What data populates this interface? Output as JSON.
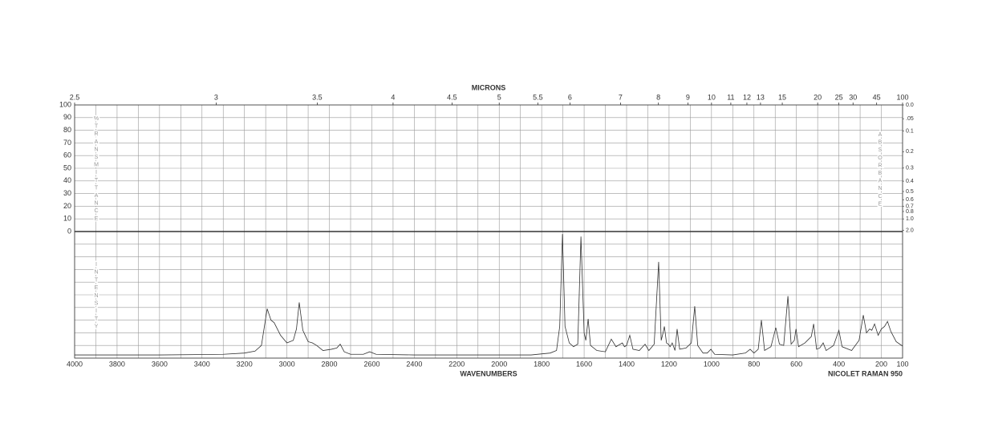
{
  "chart_data": {
    "type": "line",
    "x2_label": "MICRONS",
    "x_label": "WAVENUMBERS",
    "annotation": "NICOLET RAMAN 950",
    "y_label": "%TRANSMITTANCE",
    "y2_label": "ABSORBANCE",
    "y3_label": "INTENSITY",
    "xlim": [
      4000,
      100
    ],
    "xticks": [
      4000,
      3800,
      3600,
      3400,
      3200,
      3000,
      2800,
      2600,
      2400,
      2200,
      2000,
      1800,
      1600,
      1400,
      1200,
      1000,
      800,
      600,
      400,
      200,
      100
    ],
    "x2ticks": [
      2.5,
      3,
      3.5,
      4,
      4.5,
      5,
      5.5,
      6,
      7,
      8,
      9,
      10,
      11,
      12,
      13,
      15,
      20,
      25,
      30,
      45,
      100
    ],
    "ylim": [
      0,
      100
    ],
    "yticks": [
      0,
      10,
      20,
      30,
      40,
      50,
      60,
      70,
      80,
      90,
      100
    ],
    "y2ticks": [
      {
        "value": 0,
        "label": "0.0"
      },
      {
        "value": 0.05,
        "label": ".05"
      },
      {
        "value": 0.1,
        "label": "0.1"
      },
      {
        "value": 0.2,
        "label": "0.2"
      },
      {
        "value": 0.3,
        "label": "0.3"
      },
      {
        "value": 0.4,
        "label": "0.4"
      },
      {
        "value": 0.5,
        "label": "0.5"
      },
      {
        "value": 0.6,
        "label": "0.6"
      },
      {
        "value": 0.7,
        "label": "0.7"
      },
      {
        "value": 0.8,
        "label": "0.8"
      },
      {
        "value": 1.0,
        "label": "1.0"
      },
      {
        "value": 2.0,
        "label": "2.0"
      }
    ],
    "y3lim": [
      0,
      100
    ],
    "grid": true,
    "color": "#333333",
    "x": [
      4000,
      3600,
      3300,
      3200,
      3150,
      3120,
      3093,
      3075,
      3060,
      3030,
      3000,
      2970,
      2955,
      2942,
      2925,
      2900,
      2880,
      2860,
      2830,
      2790,
      2765,
      2749,
      2730,
      2700,
      2640,
      2610,
      2580,
      2400,
      2000,
      1850,
      1760,
      1730,
      1715,
      1702,
      1690,
      1670,
      1650,
      1630,
      1615,
      1600,
      1592,
      1581,
      1570,
      1540,
      1500,
      1472,
      1450,
      1420,
      1410,
      1400,
      1385,
      1370,
      1340,
      1313,
      1295,
      1270,
      1249,
      1237,
      1228,
      1222,
      1212,
      1203,
      1195,
      1185,
      1172,
      1162,
      1150,
      1120,
      1095,
      1079,
      1065,
      1040,
      1020,
      1003,
      985,
      900,
      840,
      818,
      800,
      780,
      765,
      750,
      720,
      697,
      680,
      660,
      640,
      625,
      610,
      602,
      590,
      560,
      542,
      530,
      519,
      505,
      490,
      474,
      460,
      425,
      400,
      385,
      340,
      305,
      285,
      270,
      255,
      245,
      232,
      215,
      200,
      185,
      171,
      155,
      130,
      100
    ],
    "values": [
      2.5,
      2.5,
      3,
      4,
      5.5,
      10,
      39,
      30,
      28,
      18,
      12,
      14,
      23,
      44,
      22,
      13,
      12,
      10,
      6,
      7,
      8,
      11,
      5,
      3,
      3,
      5,
      3,
      2.5,
      2.5,
      2.5,
      4,
      6,
      25,
      98,
      25,
      12,
      9,
      11,
      96,
      20,
      14,
      31,
      10,
      6,
      5,
      15,
      9,
      12,
      9,
      10,
      18,
      7,
      6,
      11,
      6,
      11,
      76,
      14,
      20,
      25,
      12,
      11,
      9,
      12,
      6,
      23,
      7,
      8,
      12,
      41,
      10,
      4,
      4,
      7,
      3,
      2.5,
      4,
      7,
      4,
      7,
      30,
      6,
      9,
      24,
      11,
      10,
      49,
      11,
      14,
      23,
      9,
      12,
      15,
      17,
      27,
      7,
      8,
      12,
      6,
      10,
      22,
      9,
      6,
      14,
      34,
      20,
      23,
      22,
      27,
      18,
      23,
      25,
      29,
      21,
      13,
      9.5
    ]
  }
}
